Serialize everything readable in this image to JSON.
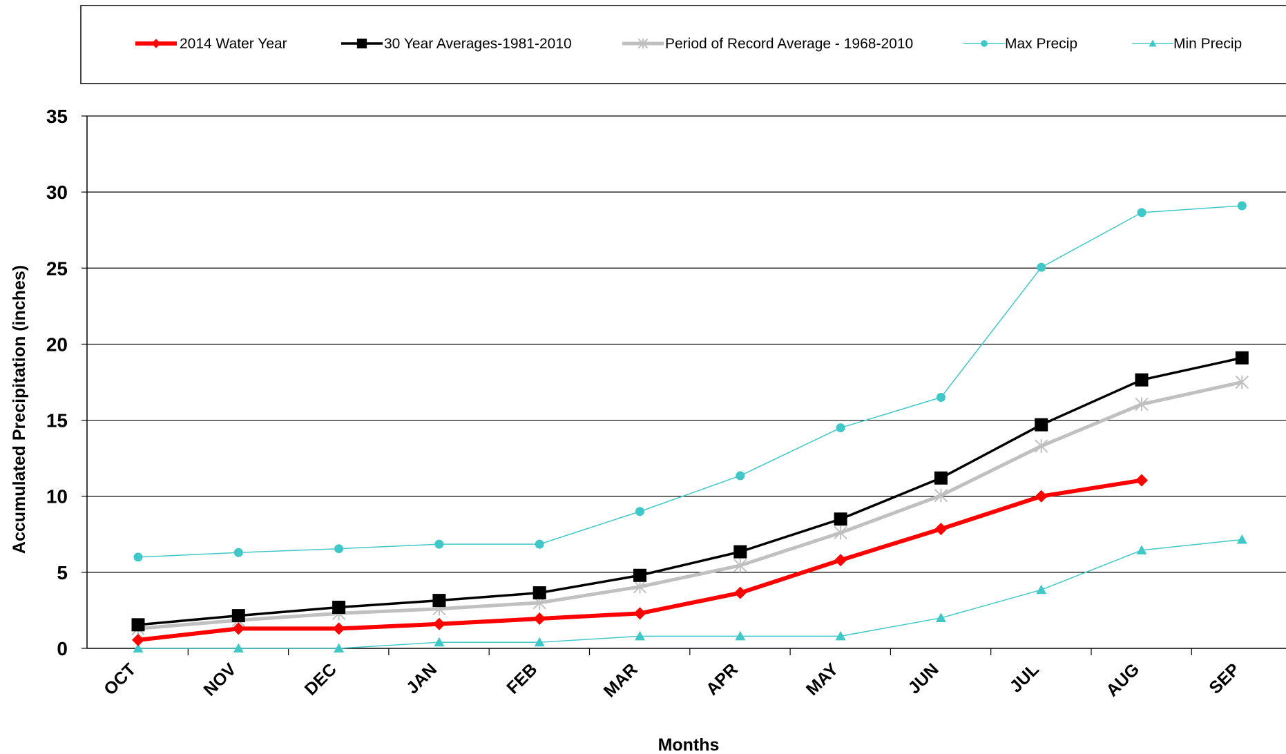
{
  "chart_data": {
    "type": "line",
    "title": "",
    "xlabel": "Months",
    "ylabel": "Accumulated  Precipitation  (inches)",
    "ylim": [
      0,
      35
    ],
    "yticks": [
      "0",
      "5",
      "10",
      "15",
      "20",
      "25",
      "30",
      "35"
    ],
    "grid": "horizontal",
    "legend_position": "top",
    "categories": [
      "OCT",
      "NOV",
      "DEC",
      "JAN",
      "FEB",
      "MAR",
      "APR",
      "MAY",
      "JUN",
      "JUL",
      "AUG",
      "SEP"
    ],
    "series": [
      {
        "name": "2014 Water Year",
        "color": "#ff0000",
        "marker": "diamond",
        "values": [
          0.55,
          1.3,
          1.3,
          1.6,
          1.95,
          2.3,
          3.65,
          5.8,
          7.85,
          10.0,
          11.05,
          null
        ]
      },
      {
        "name": "30 Year Averages-1981-2010",
        "color": "#000000",
        "marker": "square",
        "values": [
          1.55,
          2.15,
          2.7,
          3.15,
          3.65,
          4.8,
          6.35,
          8.5,
          11.2,
          14.7,
          17.65,
          19.1
        ]
      },
      {
        "name": "Period of Record Average - 1968-2010",
        "color": "#c0c0c0",
        "marker": "star",
        "values": [
          1.3,
          1.85,
          2.3,
          2.6,
          3.0,
          4.05,
          5.45,
          7.6,
          10.05,
          13.3,
          16.05,
          17.5
        ]
      },
      {
        "name": "Max Precip",
        "color": "#40c8c8",
        "marker": "circle",
        "values": [
          6.0,
          6.3,
          6.55,
          6.85,
          6.85,
          9.0,
          11.35,
          14.5,
          16.5,
          25.05,
          28.65,
          29.1
        ]
      },
      {
        "name": "Min Precip",
        "color": "#40c8c8",
        "marker": "triangle",
        "values": [
          0.0,
          0.0,
          0.0,
          0.4,
          0.4,
          0.8,
          0.8,
          0.8,
          2.0,
          3.85,
          6.45,
          7.15
        ]
      }
    ]
  }
}
